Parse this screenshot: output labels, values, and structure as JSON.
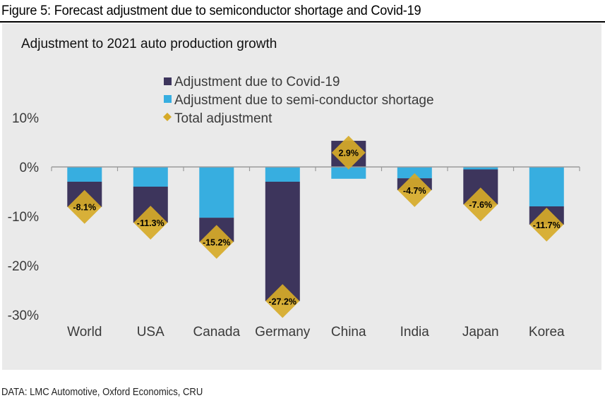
{
  "figure": {
    "title": "Figure 5: Forecast adjustment due to semiconductor shortage and Covid-19",
    "source": "DATA: LMC Automotive, Oxford Economics, CRU"
  },
  "colors": {
    "covid": "#3d355c",
    "semiconductor": "#37aee0",
    "total": "#d6aa28",
    "axis": "#9a9a9a",
    "panel": "#eaeaea"
  },
  "chart_data": {
    "type": "bar",
    "stacked": true,
    "title": "Adjustment to 2021 auto production growth",
    "xlabel": "",
    "ylabel": "",
    "ylim": [
      -30,
      10
    ],
    "yticks": [
      10,
      0,
      -10,
      -20,
      -30
    ],
    "ytick_labels": [
      "10%",
      "0%",
      "-10%",
      "-20%",
      "-30%"
    ],
    "grid": false,
    "legend_position": "top-center",
    "categories": [
      "World",
      "USA",
      "Canada",
      "Germany",
      "China",
      "India",
      "Japan",
      "Korea"
    ],
    "series": [
      {
        "name": "Adjustment due to Covid-19",
        "type": "bar",
        "color_key": "covid",
        "values": [
          -5.1,
          -7.3,
          -4.9,
          -24.2,
          5.3,
          -2.4,
          -7.1,
          -3.7
        ]
      },
      {
        "name": "Adjustment due to semi-conductor shortage",
        "type": "bar",
        "color_key": "semiconductor",
        "values": [
          -3.0,
          -4.0,
          -10.3,
          -3.0,
          -2.4,
          -2.3,
          -0.5,
          -8.0
        ]
      },
      {
        "name": "Total adjustment",
        "type": "marker",
        "marker": "diamond",
        "color_key": "total",
        "values": [
          -8.1,
          -11.3,
          -15.2,
          -27.2,
          2.9,
          -4.7,
          -7.6,
          -11.7
        ],
        "labels": [
          "-8.1%",
          "-11.3%",
          "-15.2%",
          "-27.2%",
          "2.9%",
          "-4.7%",
          "-7.6%",
          "-11.7%"
        ]
      }
    ]
  }
}
